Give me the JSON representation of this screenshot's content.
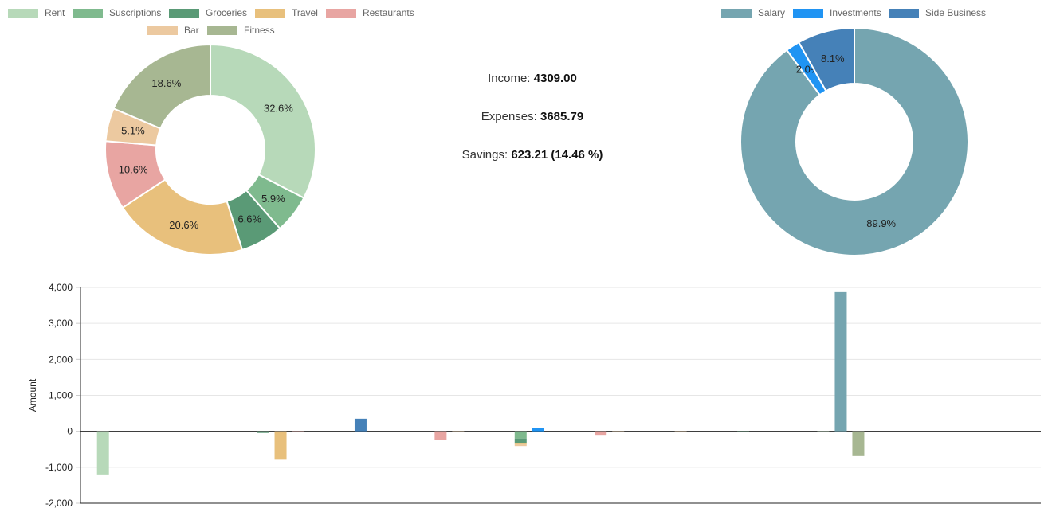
{
  "summary": {
    "income_label": "Income:",
    "income_value": "4309.00",
    "expenses_label": "Expenses:",
    "expenses_value": "3685.79",
    "savings_label": "Savings:",
    "savings_value": "623.21 (14.46 %)"
  },
  "chart_data": [
    {
      "type": "pie",
      "variant": "doughnut",
      "title": "",
      "legend_position": "top",
      "labels": [
        "Rent",
        "Suscriptions",
        "Groceries",
        "Travel",
        "Restaurants",
        "Bar",
        "Fitness"
      ],
      "values": [
        32.6,
        5.9,
        6.6,
        20.6,
        10.6,
        5.1,
        18.6
      ],
      "value_labels": [
        "32.6%",
        "5.9%",
        "6.6%",
        "20.6%",
        "10.6%",
        "5.1%",
        "18.6%"
      ],
      "colors": [
        "#b7d9b9",
        "#7fba8e",
        "#5a9a76",
        "#e8c07c",
        "#e8a5a2",
        "#ecc9a0",
        "#a7b792"
      ]
    },
    {
      "type": "pie",
      "variant": "doughnut",
      "title": "",
      "legend_position": "top",
      "labels": [
        "Salary",
        "Investments",
        "Side Business"
      ],
      "values": [
        89.9,
        2.0,
        8.1
      ],
      "value_labels": [
        "89.9%",
        "2.0%",
        "8.1%"
      ],
      "colors": [
        "#75a5b0",
        "#2094f3",
        "#4581b8"
      ]
    },
    {
      "type": "bar",
      "stacked": true,
      "title": "",
      "xlabel": "",
      "ylabel": "Amount",
      "ylim": [
        -2000,
        4000
      ],
      "yticks": [
        4000,
        3000,
        2000,
        1000,
        0,
        -1000,
        -2000
      ],
      "ytick_labels": [
        "4,000",
        "3,000",
        "2,000",
        "1,000",
        "0",
        "-1,000",
        "-2,000"
      ],
      "grid": true,
      "groups": 12,
      "bars": [
        {
          "group": 0,
          "slot": 0,
          "series": "Rent",
          "color": "#b7d9b9",
          "value": -1200
        },
        {
          "group": 2,
          "slot": 0,
          "series": "Groceries",
          "color": "#5a9a76",
          "value": -45
        },
        {
          "group": 2,
          "slot": 1,
          "series": "Travel",
          "color": "#e8c07c",
          "value": -790
        },
        {
          "group": 2,
          "slot": 2,
          "series": "Restaurants",
          "color": "#e8a5a2",
          "value": -15
        },
        {
          "group": 3,
          "slot": 1,
          "series": "Side Business",
          "color": "#4581b8",
          "value": 350
        },
        {
          "group": 4,
          "slot": 1,
          "series": "Restaurants",
          "color": "#e8a5a2",
          "value": -230
        },
        {
          "group": 4,
          "slot": 2,
          "series": "Bar",
          "color": "#ecc9a0",
          "value": -10
        },
        {
          "group": 5,
          "slot": 1,
          "series": "Suscriptions",
          "color": "#7fba8e",
          "value": -200
        },
        {
          "group": 5,
          "slot": 1,
          "series": "Groceries",
          "color": "#5a9a76",
          "value": -120
        },
        {
          "group": 5,
          "slot": 1,
          "series": "Travel",
          "color": "#e8c07c",
          "value": -50
        },
        {
          "group": 5,
          "slot": 1,
          "series": "Bar",
          "color": "#ecc9a0",
          "value": -40
        },
        {
          "group": 5,
          "slot": 2,
          "series": "Investments",
          "color": "#2094f3",
          "value": 90
        },
        {
          "group": 6,
          "slot": 1,
          "series": "Restaurants",
          "color": "#e8a5a2",
          "value": -100
        },
        {
          "group": 6,
          "slot": 2,
          "series": "Bar",
          "color": "#ecc9a0",
          "value": -10
        },
        {
          "group": 7,
          "slot": 1,
          "series": "Bar",
          "color": "#ecc9a0",
          "value": -30
        },
        {
          "group": 8,
          "slot": 0,
          "series": "Groceries",
          "color": "#5a9a76",
          "value": -25
        },
        {
          "group": 9,
          "slot": 0,
          "series": "Rent",
          "color": "#b7d9b9",
          "value": -10
        },
        {
          "group": 9,
          "slot": 1,
          "series": "Salary",
          "color": "#75a5b0",
          "value": 3870
        },
        {
          "group": 9,
          "slot": 2,
          "series": "Fitness",
          "color": "#a7b792",
          "value": -690
        }
      ]
    }
  ]
}
